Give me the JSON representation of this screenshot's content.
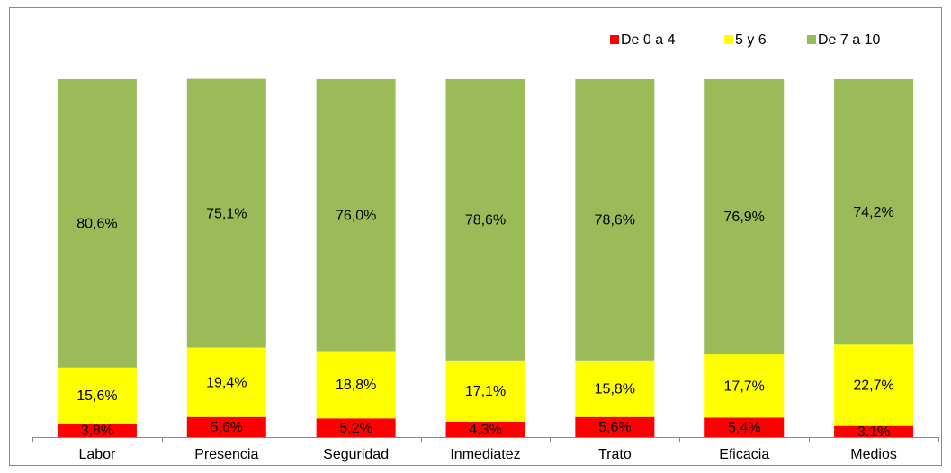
{
  "chart_data": {
    "type": "stacked_bar",
    "categories": [
      "Labor",
      "Presencia",
      "Seguridad",
      "Inmediatez",
      "Trato",
      "Eficacia",
      "Medios"
    ],
    "ylim": [
      0,
      100
    ],
    "legend": "top-right",
    "series": [
      {
        "name": "De 0 a 4",
        "color": "#ff0000",
        "values": [
          3.8,
          5.6,
          5.2,
          4.3,
          5.6,
          5.4,
          3.1
        ],
        "value_labels": [
          "3,8%",
          "5,6%",
          "5,2%",
          "4,3%",
          "5,6%",
          "5,4%",
          "3,1%"
        ]
      },
      {
        "name": "5 y 6",
        "color": "#ffff00",
        "values": [
          15.6,
          19.4,
          18.8,
          17.1,
          15.8,
          17.7,
          22.7
        ],
        "value_labels": [
          "15,6%",
          "19,4%",
          "18,8%",
          "17,1%",
          "15,8%",
          "17,7%",
          "22,7%"
        ]
      },
      {
        "name": "De 7 a 10",
        "color": "#9bbb59",
        "values": [
          80.6,
          75.1,
          76.0,
          78.6,
          78.6,
          76.9,
          74.2
        ],
        "value_labels": [
          "80,6%",
          "75,1%",
          "76,0%",
          "78,6%",
          "78,6%",
          "76,9%",
          "74,2%"
        ]
      }
    ]
  }
}
